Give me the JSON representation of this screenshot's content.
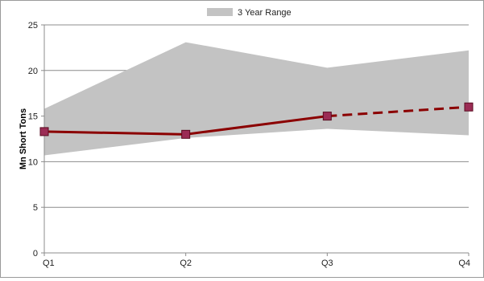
{
  "chart_data": {
    "type": "line",
    "title": "",
    "xlabel": "",
    "ylabel": "Mn Short Tons",
    "categories": [
      "Q1",
      "Q2",
      "Q3",
      "Q4"
    ],
    "ylim": [
      0,
      25
    ],
    "yticks": [
      0,
      5,
      10,
      15,
      20,
      25
    ],
    "grid": true,
    "legend_position": "top-center",
    "range": {
      "name": "3 Year Range",
      "low": [
        10.7,
        12.6,
        13.6,
        12.9
      ],
      "high": [
        15.8,
        23.1,
        20.3,
        22.2
      ],
      "color": "#c3c3c3"
    },
    "series": [
      {
        "values": [
          13.3,
          13.0,
          15.0,
          16.0
        ],
        "color": "#8b0000",
        "marker_color": "#9b2c55",
        "solid_until_index": 2,
        "dashed_from_index": 2
      }
    ]
  }
}
